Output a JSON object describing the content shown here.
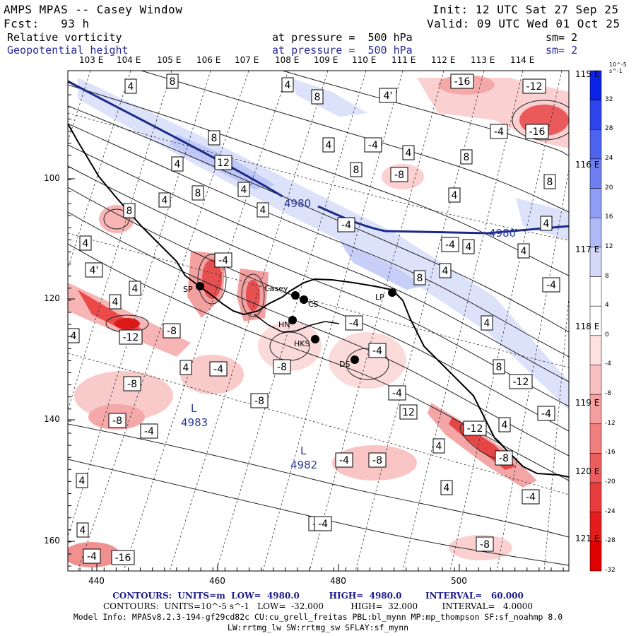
{
  "header": {
    "title": "AMPS MPAS -- Casey Window",
    "init": "Init: 12 UTC Sat 27 Sep 25",
    "fcst": "Fcst:   93 h",
    "valid": "Valid: 09 UTC Wed 01 Oct 25",
    "field1": {
      "name": "Relative vorticity",
      "pressure": "at pressure =  500 hPa",
      "sm": "sm= 2"
    },
    "field2": {
      "name": "Geopotential height",
      "pressure": "at pressure =  500 hPa",
      "sm": "sm= 2"
    }
  },
  "top_lon_labels": [
    "103 E",
    "104 E",
    "105 E",
    "106 E",
    "107 E",
    "108 E",
    "109 E",
    "110 E",
    "111 E",
    "112 E",
    "113 E",
    "114 E"
  ],
  "right_lon_labels": [
    "115 E",
    "116 E",
    "117 E",
    "118 E",
    "119 E",
    "120 E",
    "121 E"
  ],
  "x_ticks": [
    "440",
    "460",
    "480",
    "500"
  ],
  "y_ticks": [
    "100",
    "120",
    "140",
    "160"
  ],
  "colorbar": {
    "units": "10^-5 s^-1",
    "labels": [
      "32",
      "28",
      "24",
      "20",
      "16",
      "12",
      "8",
      "4",
      "0",
      "-4",
      "-8",
      "-12",
      "-16",
      "-20",
      "-24",
      "-28",
      "-32"
    ],
    "colors": [
      "#0a23e6",
      "#2c45ec",
      "#4d63ee",
      "#6e80f1",
      "#8f9df4",
      "#b0baf7",
      "#d4d9fa",
      "#ffffff",
      "#ffffff",
      "#fde0e0",
      "#f9c1c1",
      "#f5a0a0",
      "#f07f7f",
      "#ec5d5d",
      "#e83c3c",
      "#e41c1c",
      "#e00000"
    ]
  },
  "stations": [
    {
      "name": "SP"
    },
    {
      "name": "Casey"
    },
    {
      "name": "CS"
    },
    {
      "name": "LP"
    },
    {
      "name": "HN"
    },
    {
      "name": "HKS"
    },
    {
      "name": "DS"
    }
  ],
  "height_labels": [
    "4980",
    "4980"
  ],
  "low_centers": [
    {
      "symbol": "L",
      "value": "4983"
    },
    {
      "symbol": "L",
      "value": "4982"
    }
  ],
  "vort_labels": [
    "4",
    "8",
    "4",
    "8",
    "4'",
    "-16",
    "-12",
    "-16",
    "-4",
    "8",
    "4",
    "-4",
    "4",
    "8",
    "12",
    "-8",
    "8",
    "4",
    "4",
    "8",
    "4",
    "4",
    "4",
    "-4",
    "8",
    "8",
    "4",
    "4",
    "-4",
    "4",
    "4",
    "4'",
    "8",
    "4",
    "-4",
    "4",
    "4",
    "-4",
    "4",
    "-4",
    "4",
    "-12",
    "-8",
    "4",
    "-4",
    "-8",
    "-4",
    "-8",
    "8",
    "-12",
    "-8",
    "-4",
    "12",
    "-4",
    "-4",
    "-4",
    "-4",
    "4",
    "4",
    "-12",
    "4",
    "-8",
    "4",
    "-8",
    "-4",
    "4",
    "-4",
    "-4",
    "-16",
    "-8",
    "-8"
  ],
  "footer": {
    "line1": "CONTOURS:  UNITS=m  LOW=  4980.0          HIGH=  4980.0        INTERVAL=   60.000",
    "line2": "CONTOURS:  UNITS=10^-5 s^-1   LOW=  -32.000          HIGH=  32.000         INTERVAL=   4.0000",
    "line3": "Model Info: MPASv8.2.3-194-gf29cd82c CU:cu_grell_freitas PBL:bl_mynn MP:mp_thompson SF:sf_noahmp 8.0",
    "line4": "LW:rrtmg_lw SW:rrtmg_sw SFLAY:sf_mynn"
  }
}
